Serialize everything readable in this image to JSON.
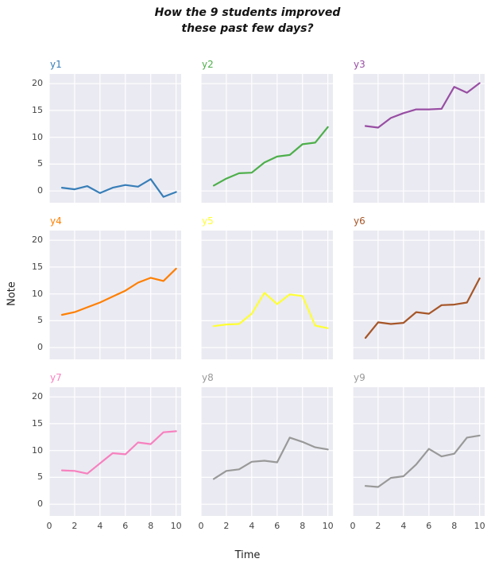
{
  "title": {
    "line1": "How the 9 students improved",
    "line2": "these past few days?"
  },
  "axis_labels": {
    "x": "Time",
    "y": "Note"
  },
  "style": {
    "plot_bg": "#EAEAF2",
    "grid_color": "#FFFFFF",
    "tick_label_color": "#444444",
    "title_color": "#141414"
  },
  "chart_data": {
    "type": "line",
    "title": "How the 9 students improved these past few days?",
    "xlabel": "Time",
    "ylabel": "Note",
    "layout": "3x3 small multiples, shared axes, seaborn darkgrid, grid on, no legend, subplot titles top-left colored as line",
    "x": [
      1,
      2,
      3,
      4,
      5,
      6,
      7,
      8,
      9,
      10
    ],
    "x_ticks": [
      0,
      2,
      4,
      6,
      8,
      10
    ],
    "y_ticks": [
      0,
      5,
      10,
      15,
      20
    ],
    "xlim": [
      0,
      10.4
    ],
    "ylim": [
      -2.2,
      21.8
    ],
    "series": [
      {
        "name": "y1",
        "color": "#377eb8",
        "values": [
          0.6,
          0.3,
          0.9,
          -0.4,
          0.6,
          1.1,
          0.8,
          2.2,
          -1.1,
          -0.2
        ]
      },
      {
        "name": "y2",
        "color": "#4daf4a",
        "values": [
          1.0,
          2.3,
          3.3,
          3.4,
          5.3,
          6.4,
          6.7,
          8.7,
          9.0,
          11.9
        ]
      },
      {
        "name": "y3",
        "color": "#984ea3",
        "values": [
          12.1,
          11.8,
          13.6,
          14.5,
          15.2,
          15.2,
          15.3,
          19.4,
          18.3,
          20.1
        ]
      },
      {
        "name": "y4",
        "color": "#ff7f00",
        "values": [
          6.1,
          6.6,
          7.5,
          8.4,
          9.5,
          10.6,
          12.1,
          13.0,
          12.4,
          14.7
        ]
      },
      {
        "name": "y5",
        "color": "#ffff33",
        "values": [
          4.0,
          4.3,
          4.4,
          6.3,
          10.2,
          8.1,
          9.9,
          9.6,
          4.1,
          3.6
        ]
      },
      {
        "name": "y6",
        "color": "#a65628",
        "values": [
          1.8,
          4.7,
          4.4,
          4.6,
          6.6,
          6.3,
          7.9,
          8.0,
          8.4,
          12.9
        ]
      },
      {
        "name": "y7",
        "color": "#f781bf",
        "values": [
          6.3,
          6.2,
          5.7,
          7.6,
          9.5,
          9.3,
          11.5,
          11.2,
          13.4,
          13.6
        ]
      },
      {
        "name": "y8",
        "color": "#999999",
        "values": [
          4.7,
          6.2,
          6.5,
          7.9,
          8.1,
          7.8,
          12.4,
          11.6,
          10.6,
          10.2
        ]
      },
      {
        "name": "y9",
        "color": "#999999",
        "values": [
          3.4,
          3.2,
          4.9,
          5.2,
          7.4,
          10.3,
          8.9,
          9.4,
          12.4,
          12.8
        ]
      }
    ]
  }
}
